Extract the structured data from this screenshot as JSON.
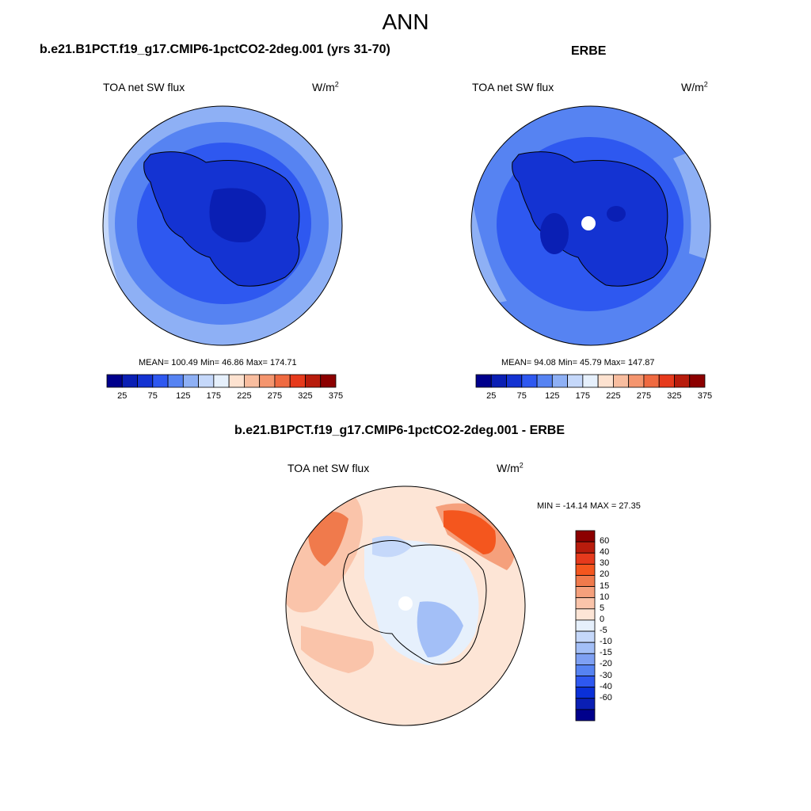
{
  "main_title": "ANN",
  "panels": [
    {
      "title": "b.e21.B1PCT.f19_g17.CMIP6-1pctCO2-2deg.001 (yrs 31-70)",
      "variable": "TOA net SW flux",
      "units_base": "W/m",
      "units_exp": "2",
      "stats": "MEAN= 100.49  Min=  46.86  Max= 174.71",
      "colorbar_ticks": [
        "25",
        "75",
        "125",
        "175",
        "225",
        "275",
        "325",
        "375"
      ]
    },
    {
      "title": "ERBE",
      "variable": "TOA net SW flux",
      "units_base": "W/m",
      "units_exp": "2",
      "stats": "MEAN=  94.08  Min=  45.79  Max= 147.87",
      "colorbar_ticks": [
        "25",
        "75",
        "125",
        "175",
        "225",
        "275",
        "325",
        "375"
      ]
    },
    {
      "title": "b.e21.B1PCT.f19_g17.CMIP6-1pctCO2-2deg.001 - ERBE",
      "variable": "TOA net SW flux",
      "units_base": "W/m",
      "units_exp": "2",
      "stats": "MIN = -14.14 MAX =  27.35",
      "colorbar_ticks": [
        "60",
        "40",
        "30",
        "20",
        "15",
        "10",
        "5",
        "0",
        "-5",
        "-10",
        "-15",
        "-20",
        "-30",
        "-40",
        "-60"
      ]
    }
  ],
  "colors": {
    "abs_scale": [
      "#00008c",
      "#0a1fb4",
      "#1433d2",
      "#2e58f0",
      "#5683f2",
      "#8eb0f5",
      "#c5d8fa",
      "#e6f0fc",
      "#fde2d0",
      "#f8bd9f",
      "#f4956e",
      "#ef6a41",
      "#e63a1c",
      "#b81c0c",
      "#8c0000"
    ],
    "diff_scale": [
      "#8c0000",
      "#b81c0c",
      "#e63a1c",
      "#f4561e",
      "#f07a4c",
      "#f5a07c",
      "#fac4aa",
      "#fde5d6",
      "#e6f0fc",
      "#c5d8fa",
      "#a3bff7",
      "#7ea0f3",
      "#5683f2",
      "#2e58f0",
      "#0a30d8",
      "#0a1fb4",
      "#00008c"
    ]
  }
}
